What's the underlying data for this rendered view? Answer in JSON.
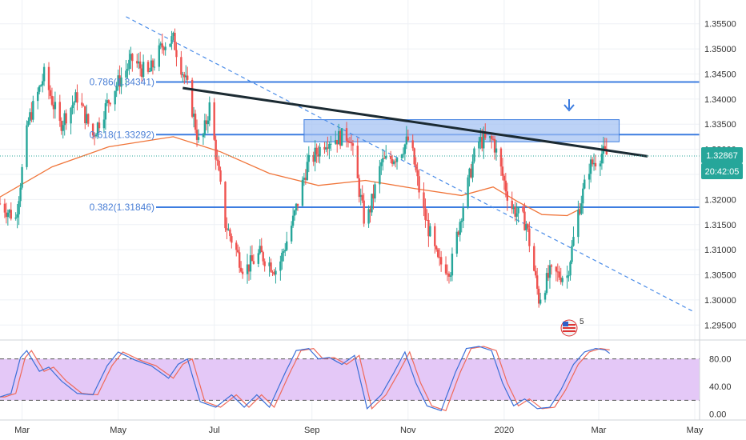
{
  "colors": {
    "up": "#26a69a",
    "down": "#ef5350",
    "ma": "#f0753a",
    "fib_line": "#3d7de0",
    "trendline": "#1b2a32",
    "dashed_trend": "#4a8ce8",
    "zone_fill": "#9fbff2",
    "stoch_k": "#3b6fd8",
    "stoch_d": "#ef6a5a",
    "stoch_band": "#e4c8f7",
    "price_badge": "#26a69a",
    "grid": "#eef1f5",
    "axis_text": "#333333"
  },
  "price_badge": {
    "value": "1.32867",
    "timer": "20:42:05"
  },
  "fib_labels": [
    {
      "text": "0.786(1.34341)",
      "price": 1.34341
    },
    {
      "text": "0.618(1.33292)",
      "price": 1.33292
    },
    {
      "text": "0.382(1.31846)",
      "price": 1.31846
    }
  ],
  "chart_data": {
    "type": "candlestick",
    "pair_hint_icon": "us-flag-icon",
    "main_y_ticks": [
      "1.35500",
      "1.35000",
      "1.34500",
      "1.34000",
      "1.33500",
      "1.33000",
      "1.32500",
      "1.32000",
      "1.31500",
      "1.31000",
      "1.30500",
      "1.30000",
      "1.29500"
    ],
    "main_ylim": [
      1.2925,
      1.3575
    ],
    "osc_y_ticks": [
      "80.00",
      "40.00",
      "0.00"
    ],
    "osc_ylim": [
      -5,
      105
    ],
    "osc_levels": [
      80,
      20
    ],
    "x_ticks": [
      "Mar",
      "May",
      "Jul",
      "Sep",
      "Nov",
      "2020",
      "Mar",
      "May"
    ],
    "current_price": 1.32867,
    "horizontal_levels": [
      1.34341,
      1.33292,
      1.31846
    ],
    "resistance_zone": {
      "from": "2019-08-27",
      "to": "2020-03-14",
      "low": 1.3315,
      "high": 1.3359
    },
    "trendline": {
      "p1": [
        "2019-06-11",
        1.3422
      ],
      "p2": [
        "2020-04-01",
        1.3286
      ]
    },
    "dashed_trendline": {
      "p1": [
        "2019-05-06",
        1.3564
      ],
      "p2": [
        "2020-04-30",
        1.2977
      ]
    },
    "ma_series": [
      [
        "2019-02-15",
        1.3205
      ],
      [
        "2019-03-20",
        1.3265
      ],
      [
        "2019-04-25",
        1.3305
      ],
      [
        "2019-06-05",
        1.3325
      ],
      [
        "2019-07-05",
        1.3295
      ],
      [
        "2019-08-05",
        1.3252
      ],
      [
        "2019-09-05",
        1.3228
      ],
      [
        "2019-10-05",
        1.3238
      ],
      [
        "2019-11-05",
        1.3222
      ],
      [
        "2019-12-05",
        1.3208
      ],
      [
        "2019-12-25",
        1.3225
      ],
      [
        "2020-01-10",
        1.3195
      ],
      [
        "2020-01-25",
        1.317
      ],
      [
        "2020-02-10",
        1.3168
      ],
      [
        "2020-02-20",
        1.3184
      ]
    ],
    "price_path": [
      [
        "2019-02-15",
        1.3192
      ],
      [
        "2019-02-25",
        1.3162
      ],
      [
        "2019-03-05",
        1.3355
      ],
      [
        "2019-03-15",
        1.3448
      ],
      [
        "2019-03-25",
        1.3348
      ],
      [
        "2019-04-05",
        1.3405
      ],
      [
        "2019-04-15",
        1.3328
      ],
      [
        "2019-04-28",
        1.3418
      ],
      [
        "2019-05-10",
        1.3478
      ],
      [
        "2019-05-20",
        1.3448
      ],
      [
        "2019-05-30",
        1.3512
      ],
      [
        "2019-06-05",
        1.3518
      ],
      [
        "2019-06-15",
        1.3412
      ],
      [
        "2019-06-22",
        1.3298
      ],
      [
        "2019-06-28",
        1.3385
      ],
      [
        "2019-07-08",
        1.3152
      ],
      [
        "2019-07-20",
        1.3058
      ],
      [
        "2019-07-30",
        1.3092
      ],
      [
        "2019-08-10",
        1.3058
      ],
      [
        "2019-08-20",
        1.3158
      ],
      [
        "2019-08-29",
        1.3268
      ],
      [
        "2019-09-10",
        1.3318
      ],
      [
        "2019-09-25",
        1.3328
      ],
      [
        "2019-10-05",
        1.3145
      ],
      [
        "2019-10-15",
        1.3272
      ],
      [
        "2019-10-25",
        1.3288
      ],
      [
        "2019-11-02",
        1.3322
      ],
      [
        "2019-11-10",
        1.3185
      ],
      [
        "2019-11-20",
        1.3075
      ],
      [
        "2019-11-28",
        1.3062
      ],
      [
        "2019-12-05",
        1.3175
      ],
      [
        "2019-12-15",
        1.3315
      ],
      [
        "2019-12-25",
        1.3318
      ],
      [
        "2020-01-05",
        1.3188
      ],
      [
        "2020-01-15",
        1.3152
      ],
      [
        "2020-01-23",
        1.3002
      ],
      [
        "2020-01-30",
        1.3052
      ],
      [
        "2020-02-10",
        1.3048
      ],
      [
        "2020-02-17",
        1.3175
      ],
      [
        "2020-02-24",
        1.3265
      ],
      [
        "2020-03-03",
        1.3292
      ],
      [
        "2020-03-08",
        1.3287
      ]
    ],
    "stoch_k_path": [
      [
        "2019-02-15",
        25
      ],
      [
        "2019-02-22",
        30
      ],
      [
        "2019-02-28",
        82
      ],
      [
        "2019-03-04",
        92
      ],
      [
        "2019-03-12",
        62
      ],
      [
        "2019-03-18",
        68
      ],
      [
        "2019-03-26",
        48
      ],
      [
        "2019-04-05",
        30
      ],
      [
        "2019-04-15",
        28
      ],
      [
        "2019-04-24",
        70
      ],
      [
        "2019-05-01",
        90
      ],
      [
        "2019-05-12",
        78
      ],
      [
        "2019-05-22",
        70
      ],
      [
        "2019-06-02",
        52
      ],
      [
        "2019-06-08",
        72
      ],
      [
        "2019-06-14",
        80
      ],
      [
        "2019-06-22",
        18
      ],
      [
        "2019-07-02",
        10
      ],
      [
        "2019-07-12",
        28
      ],
      [
        "2019-07-20",
        10
      ],
      [
        "2019-07-28",
        28
      ],
      [
        "2019-08-05",
        10
      ],
      [
        "2019-08-15",
        60
      ],
      [
        "2019-08-22",
        92
      ],
      [
        "2019-08-30",
        95
      ],
      [
        "2019-09-05",
        80
      ],
      [
        "2019-09-12",
        82
      ],
      [
        "2019-09-20",
        72
      ],
      [
        "2019-09-28",
        85
      ],
      [
        "2019-10-06",
        8
      ],
      [
        "2019-10-15",
        28
      ],
      [
        "2019-10-23",
        60
      ],
      [
        "2019-10-30",
        90
      ],
      [
        "2019-11-06",
        45
      ],
      [
        "2019-11-13",
        12
      ],
      [
        "2019-11-22",
        5
      ],
      [
        "2019-12-01",
        60
      ],
      [
        "2019-12-08",
        95
      ],
      [
        "2019-12-16",
        98
      ],
      [
        "2019-12-24",
        92
      ],
      [
        "2019-12-31",
        45
      ],
      [
        "2020-01-07",
        12
      ],
      [
        "2020-01-14",
        22
      ],
      [
        "2020-01-22",
        8
      ],
      [
        "2020-01-30",
        10
      ],
      [
        "2020-02-06",
        35
      ],
      [
        "2020-02-14",
        72
      ],
      [
        "2020-02-21",
        90
      ],
      [
        "2020-02-28",
        95
      ],
      [
        "2020-03-05",
        93
      ],
      [
        "2020-03-08",
        88
      ]
    ],
    "stoch_d_offset_days": 3
  }
}
